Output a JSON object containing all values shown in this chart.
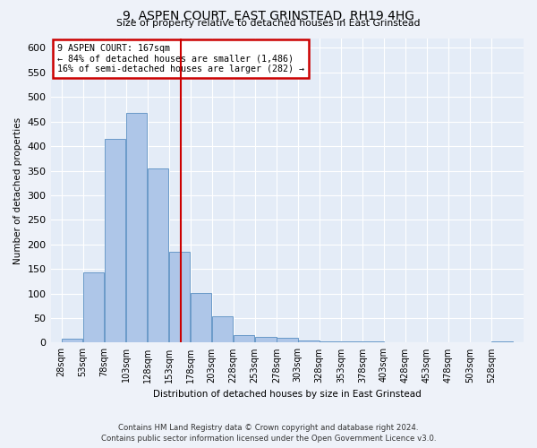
{
  "title": "9, ASPEN COURT, EAST GRINSTEAD, RH19 4HG",
  "subtitle": "Size of property relative to detached houses in East Grinstead",
  "xlabel": "Distribution of detached houses by size in East Grinstead",
  "ylabel": "Number of detached properties",
  "property_label": "9 ASPEN COURT: 167sqm",
  "annotation_line1": "← 84% of detached houses are smaller (1,486)",
  "annotation_line2": "16% of semi-detached houses are larger (282) →",
  "footer_line1": "Contains HM Land Registry data © Crown copyright and database right 2024.",
  "footer_line2": "Contains public sector information licensed under the Open Government Licence v3.0.",
  "bin_starts": [
    28,
    53,
    78,
    103,
    128,
    153,
    178,
    203,
    228,
    253,
    278,
    303,
    328,
    353,
    378,
    403,
    428,
    453,
    478,
    503,
    528
  ],
  "bar_values": [
    8,
    143,
    415,
    468,
    355,
    185,
    102,
    53,
    15,
    12,
    9,
    5,
    3,
    3,
    2,
    0,
    0,
    0,
    0,
    0,
    3
  ],
  "bar_color": "#aec6e8",
  "bar_edge_color": "#5a8fc2",
  "vline_x": 167,
  "vline_color": "#cc0000",
  "annotation_box_color": "#cc0000",
  "ylim_max": 620,
  "yticks": [
    0,
    50,
    100,
    150,
    200,
    250,
    300,
    350,
    400,
    450,
    500,
    550,
    600
  ],
  "background_color": "#eef2f9",
  "plot_bg_color": "#e4ecf7"
}
